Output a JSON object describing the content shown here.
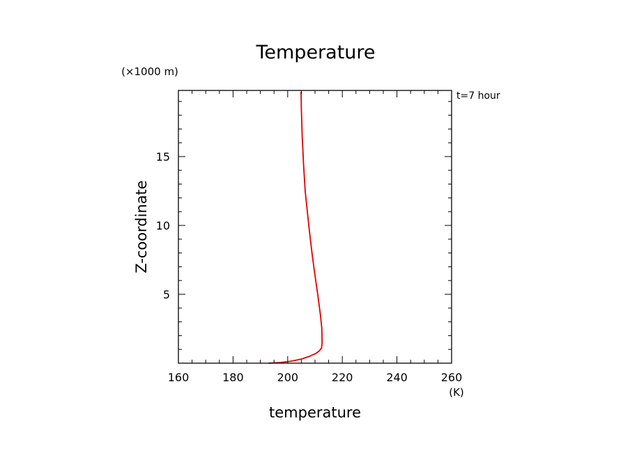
{
  "chart_data": {
    "type": "line",
    "title": "Temperature",
    "xlabel": "temperature",
    "ylabel": "Z-coordinate",
    "x_unit": "(K)",
    "y_unit": "(×1000 m)",
    "time_label": "t=7 hour",
    "xlim": [
      160,
      260
    ],
    "ylim": [
      0,
      19.8
    ],
    "x_ticks": [
      160,
      180,
      200,
      220,
      240,
      260
    ],
    "x_tick_labels": [
      "160",
      "180",
      "200",
      "220",
      "240",
      "260"
    ],
    "y_ticks": [
      5,
      10,
      15
    ],
    "y_tick_labels": [
      "5",
      "10",
      "15"
    ],
    "x_minor_step": 5,
    "y_minor_step": 1,
    "grid": false,
    "series": [
      {
        "color": "#e00000",
        "x": [
          193.0,
          197.5,
          201.5,
          205.0,
          208.0,
          210.3,
          211.6,
          212.4,
          212.6,
          212.5,
          212.0,
          211.0,
          209.9,
          208.9,
          208.0,
          207.2,
          206.4,
          205.8,
          205.3,
          205.0,
          204.9
        ],
        "y": [
          0.0,
          0.05,
          0.15,
          0.3,
          0.5,
          0.7,
          0.9,
          1.1,
          1.5,
          2.5,
          3.5,
          5.0,
          6.5,
          8.0,
          9.5,
          11.0,
          12.5,
          14.5,
          16.5,
          18.5,
          19.7
        ]
      }
    ]
  }
}
